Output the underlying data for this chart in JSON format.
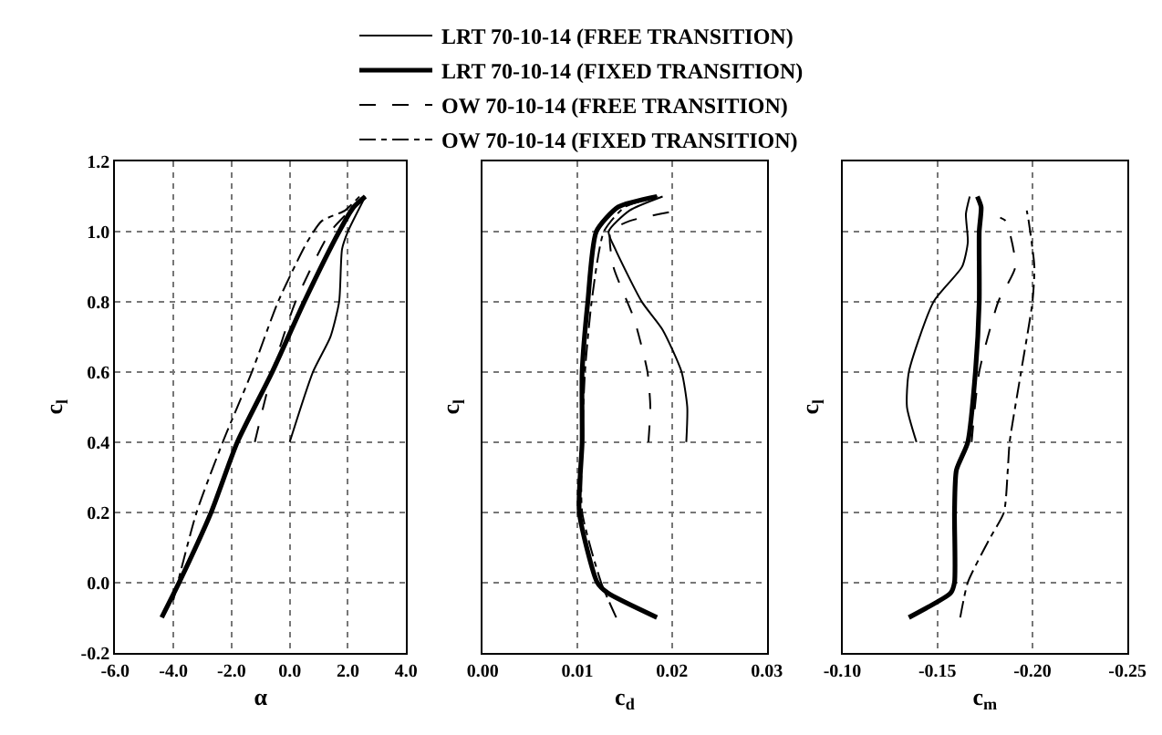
{
  "chart_data": [
    {
      "type": "line",
      "xlabel": "α",
      "ylabel": "c$_{l}$",
      "legend": "top",
      "grid": true,
      "xlim": [
        -6,
        4
      ],
      "xticks": [
        {
          "value": -6,
          "label": "-6.0"
        },
        {
          "value": -4,
          "label": "-4.0"
        },
        {
          "value": -2,
          "label": "-2.0"
        },
        {
          "value": 0,
          "label": "0.0"
        },
        {
          "value": 2,
          "label": "2.0"
        },
        {
          "value": 4,
          "label": "4.0"
        }
      ],
      "ylim": [
        -0.2,
        1.2
      ],
      "yticks": [
        {
          "value": -0.2,
          "label": "-0.2"
        },
        {
          "value": 0,
          "label": "0.0"
        },
        {
          "value": 0.2,
          "label": "0.2"
        },
        {
          "value": 0.4,
          "label": "0.4"
        },
        {
          "value": 0.6,
          "label": "0.6"
        },
        {
          "value": 0.8,
          "label": "0.8"
        },
        {
          "value": 1.0,
          "label": "1.0"
        },
        {
          "value": 1.2,
          "label": "1.2"
        }
      ],
      "series": [
        {
          "name": "LRT 70-10-14 (FREE TRANSITION)",
          "color": "#000000",
          "line_style": "solid",
          "x": [
            0.0,
            0.8,
            1.4,
            1.7,
            1.8,
            2.0,
            2.6
          ],
          "values": [
            0.4,
            0.6,
            0.7,
            0.8,
            0.95,
            1.0,
            1.1
          ]
        },
        {
          "name": "LRT 70-10-14 (FIXED TRANSITION)",
          "color": "#000000",
          "line_style": "solid",
          "x": [
            -4.4,
            -3.8,
            -2.7,
            -1.8,
            -0.6,
            0.5,
            1.7,
            2.2,
            2.6
          ],
          "values": [
            -0.1,
            0.0,
            0.2,
            0.4,
            0.6,
            0.8,
            1.0,
            1.07,
            1.1
          ]
        },
        {
          "name": "OW 70-10-14 (FREE TRANSITION)",
          "color": "#000000",
          "line_style": "dashed",
          "x": [
            -1.2,
            -0.6,
            0.2,
            1.4,
            2.2
          ],
          "values": [
            0.4,
            0.6,
            0.8,
            1.0,
            1.07
          ]
        },
        {
          "name": "OW 70-10-14 (FIXED TRANSITION)",
          "color": "#000000",
          "line_style": "dashdot",
          "x": [
            -4.0,
            -3.2,
            -2.3,
            -1.3,
            -0.4,
            0.6,
            1.1,
            1.9,
            2.4
          ],
          "values": [
            -0.05,
            0.2,
            0.4,
            0.6,
            0.8,
            0.97,
            1.03,
            1.06,
            1.1
          ]
        }
      ]
    },
    {
      "type": "line",
      "xlabel": "c$_{d}$",
      "ylabel": "c$_{l}$",
      "grid": true,
      "tick_labels": "x",
      "xlim": [
        0,
        0.03
      ],
      "xticks": [
        {
          "value": 0,
          "label": "0.00"
        },
        {
          "value": 0.01,
          "label": "0.01"
        },
        {
          "value": 0.02,
          "label": "0.02"
        },
        {
          "value": 0.03,
          "label": "0.03"
        }
      ],
      "ylim": [
        -0.2,
        1.2
      ],
      "yticks": [
        -0.2,
        0,
        0.2,
        0.4,
        0.6,
        0.8,
        1.0,
        1.2
      ],
      "series": [
        {
          "color": "#000000",
          "line_style": "solid",
          "x": [
            0.0215,
            0.0216,
            0.021,
            0.019,
            0.0168,
            0.014,
            0.0133,
            0.0155,
            0.019
          ],
          "values": [
            0.4,
            0.5,
            0.6,
            0.72,
            0.8,
            0.95,
            1.0,
            1.06,
            1.1
          ]
        },
        {
          "color": "#000000",
          "line_style": "solid",
          "x": [
            0.0184,
            0.0132,
            0.0121,
            0.0102,
            0.0105,
            0.0105,
            0.0111,
            0.012,
            0.0143,
            0.0184
          ],
          "values": [
            -0.1,
            -0.03,
            0.0,
            0.2,
            0.4,
            0.6,
            0.8,
            1.0,
            1.07,
            1.1
          ]
        },
        {
          "color": "#000000",
          "line_style": "dashed",
          "x": [
            0.0175,
            0.0177,
            0.0174,
            0.016,
            0.0138,
            0.0135,
            0.0155,
            0.0206
          ],
          "values": [
            0.4,
            0.5,
            0.6,
            0.75,
            0.9,
            1.0,
            1.03,
            1.06
          ]
        },
        {
          "color": "#000000",
          "line_style": "dashdot",
          "x": [
            0.0141,
            0.0125,
            0.0105,
            0.0105,
            0.0108,
            0.0115,
            0.0128,
            0.015,
            0.0185
          ],
          "values": [
            -0.1,
            0.0,
            0.2,
            0.4,
            0.6,
            0.8,
            1.0,
            1.07,
            1.1
          ]
        }
      ]
    },
    {
      "type": "line",
      "xlabel": "c$_{m}$",
      "ylabel": "c$_{l}$",
      "grid": true,
      "tick_labels": "x",
      "xlim": [
        -0.1,
        -0.25
      ],
      "xticks": [
        {
          "value": -0.1,
          "label": "-0.10"
        },
        {
          "value": -0.15,
          "label": "-0.15"
        },
        {
          "value": -0.2,
          "label": "-0.20"
        },
        {
          "value": -0.25,
          "label": "-0.25"
        }
      ],
      "ylim": [
        -0.2,
        1.2
      ],
      "yticks": [
        -0.2,
        0,
        0.2,
        0.4,
        0.6,
        0.8,
        1.0,
        1.2
      ],
      "series": [
        {
          "color": "#000000",
          "line_style": "solid",
          "x": [
            -0.139,
            -0.134,
            -0.135,
            -0.148,
            -0.163,
            -0.166,
            -0.165,
            -0.167
          ],
          "values": [
            0.4,
            0.5,
            0.6,
            0.8,
            0.9,
            0.97,
            1.05,
            1.1
          ]
        },
        {
          "color": "#000000",
          "line_style": "solid",
          "x": [
            -0.135,
            -0.157,
            -0.159,
            -0.159,
            -0.16,
            -0.166,
            -0.17,
            -0.172,
            -0.172,
            -0.173,
            -0.171
          ],
          "values": [
            -0.1,
            -0.03,
            0.0,
            0.2,
            0.32,
            0.4,
            0.6,
            0.8,
            1.0,
            1.07,
            1.1
          ]
        },
        {
          "color": "#000000",
          "line_style": "dashed",
          "x": [
            -0.168,
            -0.172,
            -0.182,
            -0.191,
            -0.186,
            -0.183
          ],
          "values": [
            0.4,
            0.6,
            0.8,
            0.9,
            1.03,
            1.04
          ]
        },
        {
          "color": "#000000",
          "line_style": "dashdot",
          "x": [
            -0.162,
            -0.166,
            -0.177,
            -0.185,
            -0.187,
            -0.188,
            -0.194,
            -0.2,
            -0.201,
            -0.198,
            -0.197
          ],
          "values": [
            -0.1,
            0.0,
            0.12,
            0.2,
            0.32,
            0.4,
            0.6,
            0.8,
            0.9,
            1.03,
            1.06
          ]
        }
      ]
    }
  ]
}
